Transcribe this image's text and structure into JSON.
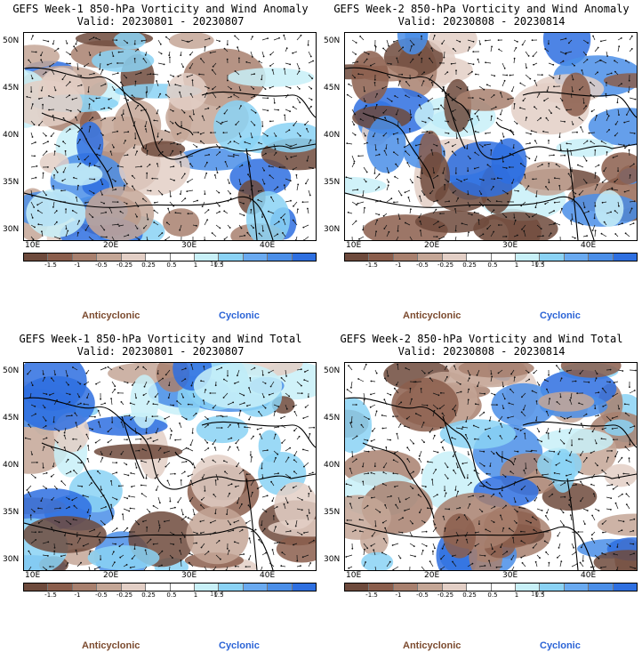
{
  "colorbar": {
    "colors": [
      "#6e4a3c",
      "#8b5e4c",
      "#a8806e",
      "#c4a696",
      "#e3cfc6",
      "#ffffff",
      "#ffffff",
      "#c8f0f8",
      "#8ad2f4",
      "#6aaaf0",
      "#4a8ee8",
      "#2e6fe0"
    ],
    "labels": [
      "-1.5",
      "-1",
      "-0.5",
      "-0.25",
      "0.25",
      "0.5",
      "1",
      "1.5"
    ],
    "unit": "10⁻⁵"
  },
  "axes": {
    "lat_labels": [
      "50N",
      "45N",
      "40N",
      "35N",
      "30N"
    ],
    "lon_labels": [
      "10E",
      "20E",
      "30E",
      "40E"
    ]
  },
  "legend": {
    "anticyclonic": "Anticyclonic",
    "cyclonic": "Cyclonic"
  },
  "panels": [
    {
      "title": "GEFS Week-1 850-hPa Vorticity and Wind Anomaly",
      "valid": "Valid: 20230801 - 20230807"
    },
    {
      "title": "GEFS Week-2 850-hPa Vorticity and Wind Anomaly",
      "valid": "Valid: 20230808 - 20230814"
    },
    {
      "title": "GEFS Week-1 850-hPa Vorticity and Wind Total",
      "valid": "Valid: 20230801 - 20230807"
    },
    {
      "title": "GEFS Week-2 850-hPa Vorticity and Wind Total",
      "valid": "Valid: 20230808 - 20230814"
    }
  ]
}
